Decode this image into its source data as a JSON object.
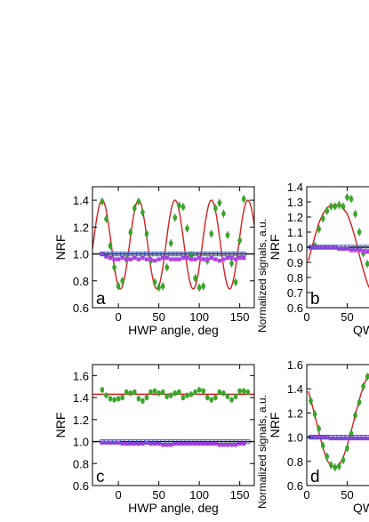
{
  "colors": {
    "fit": "#d42020",
    "green": "#3aa52a",
    "purple": "#b040e0",
    "blue": "#3858c8",
    "black": "#000000"
  },
  "shared_ylabel": "Normalized signals, a.u.",
  "chart_data": [
    {
      "id": "a",
      "type": "scatter",
      "panel_label": "a",
      "xlabel": "HWP angle, deg",
      "ylabel": "NRF",
      "xlim": [
        -32,
        168
      ],
      "ylim": [
        0.6,
        1.5
      ],
      "xticks": [
        0,
        50,
        100,
        150
      ],
      "yticks": [
        0.6,
        0.8,
        1.0,
        1.2,
        1.4
      ],
      "series": [
        {
          "kind": "fit",
          "color": "fit",
          "model": "cos2",
          "mean": 1.07,
          "amp": 0.33,
          "period": 45,
          "phase": -20
        },
        {
          "kind": "line",
          "color": "black",
          "y": 1.0
        },
        {
          "kind": "points",
          "color": "green",
          "marker": "circle",
          "errorbar": true,
          "x": [
            -20,
            -15,
            -10,
            -5,
            0,
            5,
            10,
            15,
            20,
            25,
            30,
            35,
            40,
            45,
            50,
            55,
            60,
            65,
            70,
            75,
            80,
            85,
            90,
            95,
            100,
            105,
            110,
            115,
            120,
            125,
            130,
            135,
            140,
            145,
            150,
            155
          ],
          "y": [
            1.39,
            1.26,
            1.06,
            0.9,
            0.76,
            0.8,
            0.96,
            1.16,
            1.34,
            1.39,
            1.31,
            1.15,
            0.95,
            0.79,
            0.75,
            0.76,
            0.9,
            1.08,
            1.27,
            1.36,
            1.35,
            1.19,
            0.99,
            0.82,
            0.75,
            0.76,
            0.95,
            1.15,
            1.34,
            1.38,
            1.3,
            1.14,
            0.93,
            0.79,
            1.1,
            1.41
          ]
        },
        {
          "kind": "points",
          "color": "purple",
          "marker": "square-filled",
          "x": [
            -20,
            -15,
            -10,
            -5,
            0,
            5,
            10,
            15,
            20,
            25,
            30,
            35,
            40,
            45,
            50,
            55,
            60,
            65,
            70,
            75,
            80,
            85,
            90,
            95,
            100,
            105,
            110,
            115,
            120,
            125,
            130,
            135,
            140,
            145,
            150,
            155
          ],
          "y": [
            1.0,
            0.98,
            0.97,
            0.96,
            0.96,
            0.97,
            0.96,
            0.96,
            0.97,
            0.96,
            0.97,
            0.96,
            0.96,
            0.95,
            0.96,
            0.97,
            0.97,
            0.96,
            0.96,
            0.96,
            0.97,
            0.97,
            0.96,
            0.96,
            0.97,
            0.96,
            0.96,
            0.97,
            0.96,
            0.95,
            0.96,
            0.97,
            0.97,
            0.96,
            0.97,
            0.97
          ]
        },
        {
          "kind": "points",
          "color": "blue",
          "marker": "square-open",
          "x": [
            -20,
            -15,
            -10,
            -5,
            0,
            5,
            10,
            15,
            20,
            25,
            30,
            35,
            40,
            45,
            50,
            55,
            60,
            65,
            70,
            75,
            80,
            85,
            90,
            95,
            100,
            105,
            110,
            115,
            120,
            125,
            130,
            135,
            140,
            145,
            150,
            155
          ],
          "y": [
            1.0,
            1.0,
            1.0,
            1.0,
            1.0,
            1.0,
            1.0,
            1.0,
            1.0,
            1.0,
            1.0,
            1.0,
            1.0,
            1.0,
            1.0,
            1.0,
            1.0,
            1.0,
            1.0,
            1.0,
            1.0,
            1.0,
            1.0,
            1.0,
            1.0,
            1.0,
            1.0,
            1.0,
            1.0,
            1.0,
            1.0,
            1.0,
            1.0,
            1.0,
            1.0,
            1.0
          ]
        }
      ]
    },
    {
      "id": "b",
      "type": "scatter",
      "panel_label": "b",
      "xlabel": "QW",
      "ylabel": "NRF",
      "xlim": [
        0,
        88
      ],
      "ylim": [
        0.6,
        1.4
      ],
      "xticks": [
        0,
        50
      ],
      "yticks": [
        0.6,
        0.7,
        0.8,
        0.9,
        1.0,
        1.1,
        1.2,
        1.3,
        1.4
      ],
      "series": [
        {
          "kind": "fit",
          "color": "fit",
          "model": "points",
          "x": [
            2,
            5,
            10,
            15,
            20,
            25,
            30,
            35,
            40,
            45,
            50,
            55,
            60,
            65,
            70,
            75,
            80,
            85,
            88
          ],
          "y": [
            0.91,
            0.97,
            1.07,
            1.16,
            1.22,
            1.26,
            1.28,
            1.28,
            1.28,
            1.26,
            1.22,
            1.15,
            1.06,
            0.95,
            0.85,
            0.76,
            0.7,
            0.66,
            0.65
          ]
        },
        {
          "kind": "line",
          "color": "black",
          "y": 1.0
        },
        {
          "kind": "points",
          "color": "green",
          "marker": "circle",
          "errorbar": true,
          "x": [
            10,
            15,
            20,
            25,
            30,
            35,
            40,
            45,
            50,
            55,
            60,
            65,
            70,
            75,
            80
          ],
          "y": [
            1.01,
            1.12,
            1.19,
            1.24,
            1.27,
            1.27,
            1.28,
            1.27,
            1.33,
            1.32,
            1.22,
            1.1,
            0.96,
            0.89,
            0.85
          ]
        },
        {
          "kind": "points",
          "color": "purple",
          "marker": "square-filled",
          "x": [
            5,
            10,
            15,
            20,
            25,
            30,
            35,
            40,
            45,
            50,
            55,
            60,
            65,
            70,
            75,
            80,
            85
          ],
          "y": [
            1.0,
            1.0,
            1.0,
            1.0,
            1.0,
            1.0,
            1.0,
            0.99,
            0.99,
            0.99,
            0.98,
            0.98,
            0.98,
            0.97,
            0.97,
            0.97,
            0.97
          ]
        },
        {
          "kind": "points",
          "color": "blue",
          "marker": "square-open",
          "x": [
            5,
            10,
            15,
            20,
            25,
            30,
            35,
            40,
            45,
            50,
            55,
            60,
            65,
            70,
            75,
            80,
            85
          ],
          "y": [
            1.0,
            1.0,
            1.0,
            1.0,
            1.0,
            1.0,
            1.0,
            1.0,
            1.0,
            1.0,
            1.0,
            1.0,
            1.0,
            1.0,
            1.0,
            1.0,
            1.0
          ]
        }
      ]
    },
    {
      "id": "c",
      "type": "scatter",
      "panel_label": "c",
      "xlabel": "HWP angle, deg",
      "ylabel": "NRF",
      "xlim": [
        -32,
        168
      ],
      "ylim": [
        0.6,
        1.7
      ],
      "xticks": [
        0,
        50,
        100,
        150
      ],
      "yticks": [
        0.6,
        0.8,
        1.0,
        1.2,
        1.4,
        1.6
      ],
      "series": [
        {
          "kind": "line",
          "color": "fit",
          "y": 1.43
        },
        {
          "kind": "line",
          "color": "black",
          "y": 1.0
        },
        {
          "kind": "points",
          "color": "green",
          "marker": "circle",
          "x": [
            -20,
            -15,
            -10,
            -5,
            0,
            5,
            10,
            15,
            20,
            25,
            30,
            35,
            40,
            45,
            50,
            55,
            60,
            65,
            70,
            75,
            80,
            85,
            90,
            95,
            100,
            105,
            110,
            115,
            120,
            125,
            130,
            135,
            140,
            145,
            150,
            155,
            160
          ],
          "y": [
            1.47,
            1.42,
            1.39,
            1.38,
            1.39,
            1.4,
            1.45,
            1.44,
            1.45,
            1.39,
            1.37,
            1.4,
            1.45,
            1.46,
            1.44,
            1.45,
            1.41,
            1.42,
            1.44,
            1.45,
            1.4,
            1.42,
            1.43,
            1.45,
            1.47,
            1.46,
            1.4,
            1.38,
            1.4,
            1.45,
            1.44,
            1.41,
            1.38,
            1.41,
            1.46,
            1.46,
            1.45
          ]
        },
        {
          "kind": "points",
          "color": "purple",
          "marker": "square-filled",
          "x": [
            -20,
            -15,
            -10,
            -5,
            0,
            5,
            10,
            15,
            20,
            25,
            30,
            35,
            40,
            45,
            50,
            55,
            60,
            65,
            70,
            75,
            80,
            85,
            90,
            95,
            100,
            105,
            110,
            115,
            120,
            125,
            130,
            135,
            140,
            145,
            150,
            155
          ],
          "y": [
            0.99,
            0.99,
            0.99,
            0.99,
            0.99,
            0.98,
            0.98,
            0.98,
            0.98,
            0.98,
            0.98,
            0.99,
            0.98,
            0.98,
            0.98,
            0.97,
            0.97,
            0.97,
            0.98,
            0.98,
            0.98,
            0.98,
            0.98,
            0.98,
            0.98,
            0.98,
            0.98,
            0.98,
            0.98,
            0.97,
            0.97,
            0.97,
            0.97,
            0.97,
            0.98,
            0.98
          ]
        },
        {
          "kind": "points",
          "color": "blue",
          "marker": "square-open",
          "x": [
            -20,
            -15,
            -10,
            -5,
            0,
            5,
            10,
            15,
            20,
            25,
            30,
            35,
            40,
            45,
            50,
            55,
            60,
            65,
            70,
            75,
            80,
            85,
            90,
            95,
            100,
            105,
            110,
            115,
            120,
            125,
            130,
            135,
            140,
            145,
            150,
            155,
            160
          ],
          "y": [
            1.0,
            1.0,
            1.0,
            1.0,
            1.0,
            1.0,
            1.0,
            1.0,
            1.0,
            1.0,
            1.0,
            1.0,
            1.0,
            1.0,
            1.0,
            1.0,
            1.0,
            1.0,
            1.0,
            1.0,
            1.0,
            1.0,
            1.0,
            1.0,
            1.0,
            1.0,
            1.0,
            1.0,
            1.0,
            1.0,
            1.0,
            1.0,
            1.0,
            1.0,
            1.0,
            1.0,
            1.0
          ]
        }
      ]
    },
    {
      "id": "d",
      "type": "scatter",
      "panel_label": "d",
      "xlabel": "QW",
      "ylabel": "NRF",
      "xlim": [
        0,
        88
      ],
      "ylim": [
        0.6,
        1.6
      ],
      "xticks": [
        0,
        50
      ],
      "yticks": [
        0.6,
        0.8,
        1.0,
        1.2,
        1.4,
        1.6
      ],
      "series": [
        {
          "kind": "fit",
          "color": "fit",
          "model": "points",
          "x": [
            2,
            5,
            10,
            15,
            20,
            25,
            30,
            35,
            40,
            45,
            50,
            55,
            60,
            65,
            70,
            75,
            80,
            85,
            88
          ],
          "y": [
            1.38,
            1.31,
            1.18,
            1.04,
            0.91,
            0.81,
            0.76,
            0.75,
            0.77,
            0.83,
            0.93,
            1.05,
            1.18,
            1.31,
            1.42,
            1.5,
            1.55,
            1.57,
            1.57
          ]
        },
        {
          "kind": "line",
          "color": "black",
          "y": 1.0
        },
        {
          "kind": "points",
          "color": "green",
          "marker": "circle",
          "errorbar": true,
          "x": [
            5,
            10,
            15,
            20,
            25,
            30,
            35,
            40,
            45,
            50,
            55,
            60,
            65,
            70,
            75,
            80,
            85
          ],
          "y": [
            1.3,
            1.19,
            1.07,
            0.93,
            0.84,
            0.77,
            0.75,
            0.76,
            0.81,
            0.91,
            1.03,
            1.18,
            1.29,
            1.42,
            1.5,
            1.53,
            1.55
          ]
        },
        {
          "kind": "points",
          "color": "purple",
          "marker": "square-filled",
          "x": [
            5,
            10,
            15,
            20,
            25,
            30,
            35,
            40,
            45,
            50,
            55,
            60,
            65,
            70,
            75,
            80,
            85
          ],
          "y": [
            1.0,
            1.0,
            1.0,
            1.0,
            1.0,
            0.99,
            0.99,
            0.99,
            0.99,
            0.99,
            0.99,
            0.99,
            0.99,
            0.99,
            0.99,
            0.99,
            0.99
          ]
        },
        {
          "kind": "points",
          "color": "blue",
          "marker": "square-open",
          "x": [
            5,
            10,
            15,
            20,
            25,
            30,
            35,
            40,
            45,
            50,
            55,
            60,
            65,
            70,
            75,
            80,
            85
          ],
          "y": [
            1.0,
            1.0,
            1.0,
            1.0,
            1.0,
            1.0,
            1.0,
            1.0,
            1.0,
            1.0,
            1.0,
            1.0,
            1.0,
            1.0,
            1.0,
            1.0,
            1.0
          ]
        }
      ]
    }
  ]
}
